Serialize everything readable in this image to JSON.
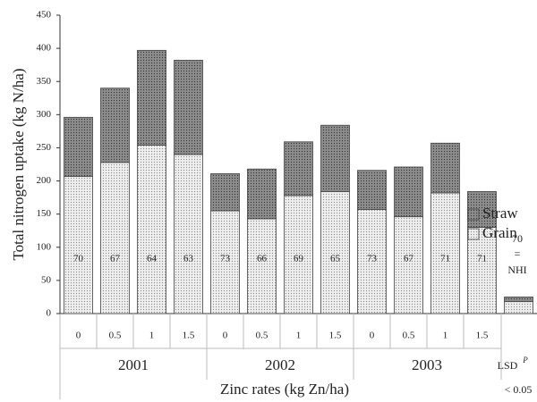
{
  "chart_data": {
    "type": "bar",
    "stacked": true,
    "y_label": "Total nitrogen uptake (kg N/ha)",
    "x_label": "Zinc rates (kg Zn/ha)",
    "groups": [
      {
        "name": "2001",
        "categories": [
          "0",
          "0.5",
          "1",
          "1.5"
        ]
      },
      {
        "name": "2002",
        "categories": [
          "0",
          "0.5",
          "1",
          "1.5"
        ]
      },
      {
        "name": "2003",
        "categories": [
          "0",
          "0.5",
          "1",
          "1.5"
        ]
      }
    ],
    "series": [
      {
        "name": "Grain",
        "color": "#eeeeee",
        "values": [
          207,
          228,
          254,
          240,
          155,
          143,
          178,
          184,
          157,
          146,
          182,
          130
        ]
      },
      {
        "name": "Straw",
        "color": "#8c8c8c",
        "values": [
          89,
          112,
          143,
          142,
          56,
          75,
          81,
          100,
          59,
          75,
          75,
          54
        ]
      }
    ],
    "nhi": [
      70,
      67,
      64,
      63,
      73,
      66,
      69,
      65,
      73,
      67,
      71,
      71
    ],
    "nhi_legend": {
      "value": "70",
      "sign": "=",
      "label": "NHI"
    },
    "lsd": {
      "label": "LSD",
      "superscript": "P",
      "condition": "< 0.05",
      "values": [
        18,
        7
      ]
    },
    "ylim": [
      0,
      450
    ],
    "yticks": [
      0,
      50,
      100,
      150,
      200,
      250,
      300,
      350,
      400,
      450
    ],
    "legend": "right"
  }
}
